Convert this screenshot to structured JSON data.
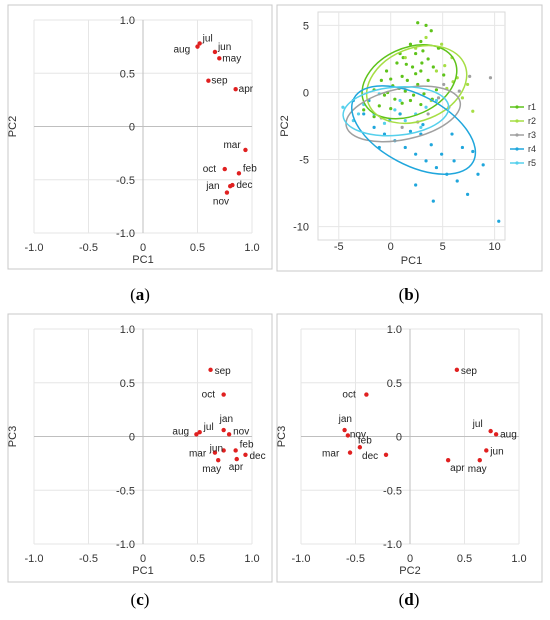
{
  "colors": {
    "point": "#e02020",
    "grid": "#e6e6e6",
    "axis": "#bfbfbf",
    "frame": "#c8c8c8",
    "r1": "#5ec31a",
    "r2": "#a6de44",
    "r3": "#a0a0a0",
    "r4": "#1fa6dc",
    "r5": "#55d0ec"
  },
  "chart_data": [
    {
      "id": "a",
      "type": "scatter",
      "caption": "(a)",
      "caption_letter": "a",
      "xlabel": "PC1",
      "ylabel": "PC2",
      "xlim": [
        -1.0,
        1.0
      ],
      "ylim": [
        -1.0,
        1.0
      ],
      "xticks": [
        "-1.0",
        "-0.5",
        "0",
        "0.5",
        "1.0"
      ],
      "yticks": [
        "1.0",
        "0.5",
        "0",
        "-0.5",
        "-1.0"
      ],
      "grid": true,
      "points": [
        {
          "label": "jul",
          "x": 0.52,
          "y": 0.78
        },
        {
          "label": "aug",
          "x": 0.5,
          "y": 0.75
        },
        {
          "label": "jun",
          "x": 0.66,
          "y": 0.7
        },
        {
          "label": "may",
          "x": 0.7,
          "y": 0.64
        },
        {
          "label": "sep",
          "x": 0.6,
          "y": 0.43
        },
        {
          "label": "apr",
          "x": 0.85,
          "y": 0.35
        },
        {
          "label": "mar",
          "x": 0.94,
          "y": -0.22
        },
        {
          "label": "oct",
          "x": 0.75,
          "y": -0.4
        },
        {
          "label": "feb",
          "x": 0.88,
          "y": -0.44
        },
        {
          "label": "jan",
          "x": 0.8,
          "y": -0.56
        },
        {
          "label": "dec",
          "x": 0.82,
          "y": -0.55
        },
        {
          "label": "nov",
          "x": 0.77,
          "y": -0.62
        }
      ]
    },
    {
      "id": "b",
      "type": "scatter",
      "caption": "(b)",
      "caption_letter": "b",
      "xlabel": "PC1",
      "ylabel": "PC2",
      "xlim": [
        -7,
        11
      ],
      "ylim": [
        -11,
        6
      ],
      "xticks": [
        "-5",
        "0",
        "5",
        "10"
      ],
      "yticks": [
        "5",
        "0",
        "-5",
        "-10"
      ],
      "grid": true,
      "legend": {
        "position": "right",
        "entries": [
          "r1",
          "r2",
          "r3",
          "r4",
          "r5"
        ]
      },
      "ellipses": [
        {
          "series": "r1",
          "cx": 1.8,
          "cy": 0.8,
          "rx": 4.8,
          "ry": 2.5,
          "angle": 25
        },
        {
          "series": "r2",
          "cx": 2.5,
          "cy": 0.6,
          "rx": 5.0,
          "ry": 2.7,
          "angle": 22
        },
        {
          "series": "r3",
          "cx": 1.2,
          "cy": -1.6,
          "rx": 5.6,
          "ry": 1.9,
          "angle": 12
        },
        {
          "series": "r4",
          "cx": 2.2,
          "cy": -2.8,
          "rx": 6.5,
          "ry": 2.6,
          "angle": -28
        },
        {
          "series": "r5",
          "cx": 0.5,
          "cy": -1.4,
          "rx": 5.1,
          "ry": 1.8,
          "angle": 5
        }
      ],
      "series": [
        {
          "name": "r1",
          "points": [
            [
              2.6,
              5.2
            ],
            [
              3.4,
              5.0
            ],
            [
              3.9,
              4.6
            ],
            [
              2.9,
              3.8
            ],
            [
              1.9,
              3.6
            ],
            [
              2.4,
              2.9
            ],
            [
              3.1,
              3.1
            ],
            [
              4.6,
              3.3
            ],
            [
              3.6,
              2.5
            ],
            [
              0.9,
              2.9
            ],
            [
              1.5,
              2.1
            ],
            [
              2.1,
              1.9
            ],
            [
              2.9,
              1.6
            ],
            [
              4.1,
              1.9
            ],
            [
              0.6,
              2.2
            ],
            [
              -0.4,
              1.6
            ],
            [
              1.1,
              1.2
            ],
            [
              1.6,
              0.9
            ],
            [
              2.6,
              0.6
            ],
            [
              3.6,
              0.9
            ],
            [
              5.1,
              1.3
            ],
            [
              -0.9,
              0.9
            ],
            [
              0.2,
              0.5
            ],
            [
              0.8,
              0.3
            ],
            [
              1.4,
              0.1
            ],
            [
              2.2,
              -0.2
            ],
            [
              3.2,
              -0.1
            ],
            [
              4.4,
              0.2
            ],
            [
              -1.6,
              0.2
            ],
            [
              -0.6,
              -0.2
            ],
            [
              0.4,
              -0.5
            ],
            [
              1.1,
              -0.8
            ],
            [
              1.9,
              -0.6
            ],
            [
              2.9,
              -0.9
            ],
            [
              -2.1,
              -0.6
            ],
            [
              -1.1,
              -1.0
            ],
            [
              0.0,
              -1.2
            ],
            [
              0.9,
              -1.6
            ],
            [
              -2.6,
              -1.3
            ],
            [
              -1.6,
              -1.8
            ],
            [
              2.4,
              1.4
            ],
            [
              1.2,
              2.6
            ],
            [
              0.0,
              1.0
            ],
            [
              -0.3,
              0.0
            ],
            [
              3.0,
              2.2
            ],
            [
              4.0,
              -0.5
            ]
          ]
        },
        {
          "name": "r2",
          "points": [
            [
              4.9,
              3.6
            ],
            [
              5.9,
              2.6
            ],
            [
              3.4,
              4.1
            ],
            [
              6.4,
              1.1
            ],
            [
              7.4,
              0.6
            ],
            [
              5.4,
              0.3
            ],
            [
              4.4,
              1.6
            ],
            [
              2.4,
              3.3
            ],
            [
              1.4,
              2.6
            ],
            [
              6.9,
              -0.4
            ],
            [
              7.9,
              -1.4
            ],
            [
              3.9,
              -0.6
            ],
            [
              6.0,
              0.8
            ],
            [
              5.2,
              2.0
            ]
          ]
        },
        {
          "name": "r3",
          "points": [
            [
              7.6,
              1.2
            ],
            [
              9.6,
              1.1
            ],
            [
              4.6,
              -0.4
            ],
            [
              5.6,
              -1.1
            ],
            [
              2.6,
              -2.2
            ],
            [
              6.6,
              0.1
            ],
            [
              3.6,
              -1.6
            ],
            [
              1.1,
              -2.6
            ],
            [
              -0.9,
              -1.9
            ],
            [
              5.1,
              0.6
            ]
          ]
        },
        {
          "name": "r4",
          "points": [
            [
              -3.6,
              -0.6
            ],
            [
              -2.6,
              -1.6
            ],
            [
              -1.6,
              -2.6
            ],
            [
              -0.6,
              -3.1
            ],
            [
              0.4,
              -3.6
            ],
            [
              1.4,
              -4.1
            ],
            [
              2.4,
              -4.6
            ],
            [
              3.4,
              -5.1
            ],
            [
              4.4,
              -5.6
            ],
            [
              5.4,
              -6.1
            ],
            [
              6.4,
              -6.6
            ],
            [
              7.4,
              -7.6
            ],
            [
              8.4,
              -6.1
            ],
            [
              10.4,
              -9.6
            ],
            [
              2.9,
              -3.1
            ],
            [
              3.9,
              -3.9
            ],
            [
              4.9,
              -4.6
            ],
            [
              -0.1,
              -2.1
            ],
            [
              1.9,
              -2.9
            ],
            [
              6.9,
              -4.1
            ],
            [
              -2.1,
              -0.6
            ],
            [
              0.9,
              -1.6
            ],
            [
              7.9,
              -4.4
            ],
            [
              5.9,
              -3.1
            ],
            [
              2.4,
              -6.9
            ],
            [
              -1.1,
              -4.1
            ],
            [
              4.1,
              -8.1
            ],
            [
              8.9,
              -5.4
            ],
            [
              3.1,
              -2.4
            ],
            [
              6.1,
              -5.1
            ]
          ]
        },
        {
          "name": "r5",
          "points": [
            [
              -4.6,
              -1.1
            ],
            [
              -3.6,
              -2.1
            ],
            [
              -2.6,
              -0.9
            ],
            [
              -1.6,
              -1.6
            ],
            [
              -0.6,
              -2.3
            ],
            [
              0.4,
              -1.3
            ],
            [
              1.4,
              -2.1
            ],
            [
              2.4,
              -1.6
            ],
            [
              3.4,
              -1.1
            ],
            [
              4.4,
              -0.6
            ],
            [
              -3.1,
              -1.6
            ],
            [
              0.9,
              -0.6
            ],
            [
              2.9,
              -2.6
            ],
            [
              -1.1,
              -0.1
            ]
          ]
        }
      ]
    },
    {
      "id": "c",
      "type": "scatter",
      "caption": "(c)",
      "caption_letter": "c",
      "xlabel": "PC1",
      "ylabel": "PC3",
      "xlim": [
        -1.0,
        1.0
      ],
      "ylim": [
        -1.0,
        1.0
      ],
      "xticks": [
        "-1.0",
        "-0.5",
        "0",
        "0.5",
        "1.0"
      ],
      "yticks": [
        "1.0",
        "0.5",
        "0",
        "-0.5",
        "-1.0"
      ],
      "grid": true,
      "points": [
        {
          "label": "sep",
          "x": 0.62,
          "y": 0.62
        },
        {
          "label": "oct",
          "x": 0.74,
          "y": 0.39
        },
        {
          "label": "jan",
          "x": 0.74,
          "y": 0.06
        },
        {
          "label": "jul",
          "x": 0.52,
          "y": 0.04
        },
        {
          "label": "aug",
          "x": 0.49,
          "y": 0.02
        },
        {
          "label": "nov",
          "x": 0.79,
          "y": 0.02
        },
        {
          "label": "feb",
          "x": 0.85,
          "y": -0.13
        },
        {
          "label": "mar",
          "x": 0.66,
          "y": -0.15
        },
        {
          "label": "jun",
          "x": 0.74,
          "y": -0.13
        },
        {
          "label": "dec",
          "x": 0.94,
          "y": -0.17
        },
        {
          "label": "may",
          "x": 0.69,
          "y": -0.22
        },
        {
          "label": "apr",
          "x": 0.86,
          "y": -0.21
        }
      ]
    },
    {
      "id": "d",
      "type": "scatter",
      "caption": "(d)",
      "caption_letter": "d",
      "xlabel": "PC2",
      "ylabel": "PC3",
      "xlim": [
        -1.0,
        1.0
      ],
      "ylim": [
        -1.0,
        1.0
      ],
      "xticks": [
        "-1.0",
        "-0.5",
        "0",
        "0.5",
        "1.0"
      ],
      "yticks": [
        "1.0",
        "0.5",
        "0",
        "-0.5",
        "-1.0"
      ],
      "grid": true,
      "points": [
        {
          "label": "sep",
          "x": 0.43,
          "y": 0.62
        },
        {
          "label": "oct",
          "x": -0.4,
          "y": 0.39
        },
        {
          "label": "jan",
          "x": -0.6,
          "y": 0.06
        },
        {
          "label": "nov",
          "x": -0.57,
          "y": 0.01
        },
        {
          "label": "feb",
          "x": -0.46,
          "y": -0.1
        },
        {
          "label": "mar",
          "x": -0.55,
          "y": -0.15
        },
        {
          "label": "dec",
          "x": -0.22,
          "y": -0.17
        },
        {
          "label": "jul",
          "x": 0.74,
          "y": 0.05
        },
        {
          "label": "aug",
          "x": 0.79,
          "y": 0.02
        },
        {
          "label": "jun",
          "x": 0.7,
          "y": -0.13
        },
        {
          "label": "apr",
          "x": 0.35,
          "y": -0.22
        },
        {
          "label": "may",
          "x": 0.64,
          "y": -0.22
        }
      ]
    }
  ]
}
